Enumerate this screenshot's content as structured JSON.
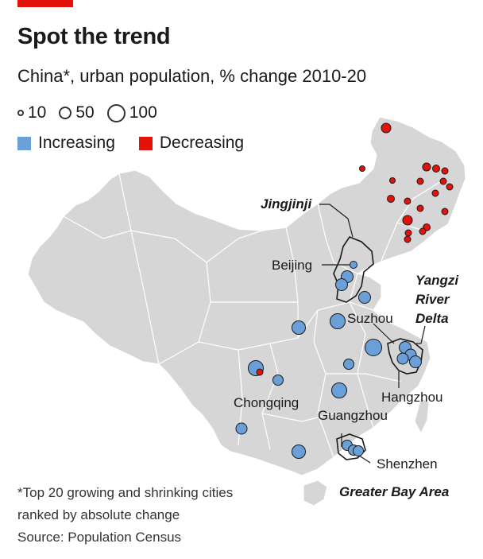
{
  "title": "Spot the trend",
  "subtitle": "China*, urban population, % change 2010-20",
  "legend": {
    "sizes": [
      {
        "label": "10",
        "d": 8
      },
      {
        "label": "50",
        "d": 16
      },
      {
        "label": "100",
        "d": 23
      }
    ],
    "colors": [
      {
        "label": "Increasing",
        "color": "#6a9fd8"
      },
      {
        "label": "Decreasing",
        "color": "#e3120b"
      }
    ]
  },
  "city_labels": {
    "beijing": "Beijing",
    "suzhou": "Suzhou",
    "chongqing": "Chongqing",
    "hangzhou": "Hangzhou",
    "guangzhou": "Guangzhou",
    "shenzhen": "Shenzhen"
  },
  "region_labels": {
    "jingjinji": "Jingjinji",
    "yangzi_1": "Yangzi",
    "yangzi_2": "River",
    "yangzi_3": "Delta",
    "gba": "Greater Bay Area"
  },
  "footnotes": {
    "line1": "*Top 20 growing and shrinking cities",
    "line2": "ranked by absolute change",
    "source": "Source: Population Census"
  },
  "colors": {
    "land": "#d6d6d6",
    "border": "#ffffff",
    "increasing": "#6a9fd8",
    "decreasing": "#e3120b",
    "accent": "#e3120b"
  }
}
